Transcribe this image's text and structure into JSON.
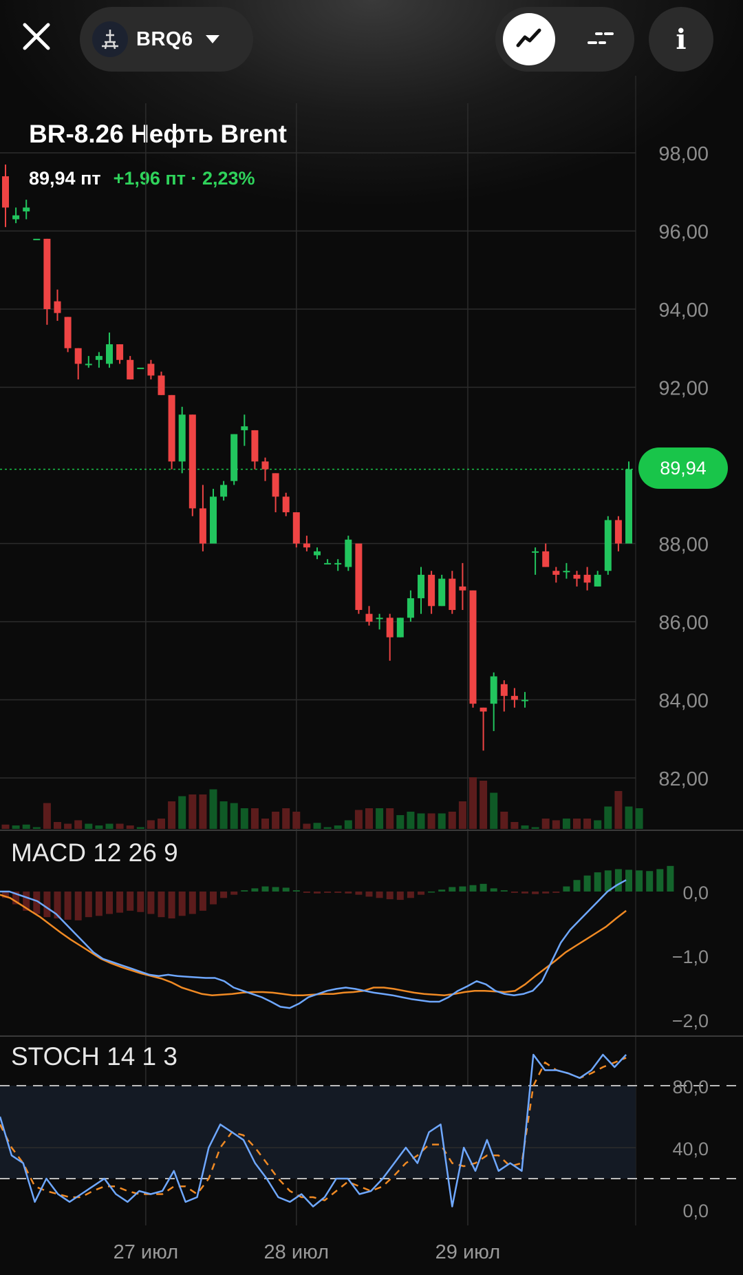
{
  "header": {
    "ticker": "BRQ6",
    "close_icon": "close-icon",
    "ticker_icon": "oil-rig-icon",
    "mode_chart_icon": "line-chart-icon",
    "mode_list_icon": "dashes-icon",
    "info_icon": "info-icon",
    "info_glyph": "i"
  },
  "instrument": {
    "title": "BR-8.26 Нефть Brent",
    "price": "89,94 пт",
    "change": "+1,96 пт · 2,23%"
  },
  "colors": {
    "up": "#22c55e",
    "down": "#ef4444",
    "macd_line": "#6fa8ff",
    "signal_line": "#f08a24",
    "badge": "#19c54a"
  },
  "chart_data": [
    {
      "type": "candlestick",
      "title": "BR-8.26 Нефть Brent",
      "y_ticks": [
        "98,00",
        "96,00",
        "94,00",
        "92,00",
        "88,00",
        "86,00",
        "84,00",
        "82,00"
      ],
      "ylim": [
        80.6,
        98.0
      ],
      "last_price": "89,94",
      "x_ticks": [
        "27 июл",
        "28 июл",
        "29 июл"
      ],
      "x_tick_index": [
        13.5,
        28,
        44.5
      ],
      "candles": [
        [
          97.4,
          97.7,
          96.1,
          96.6
        ],
        [
          96.3,
          96.6,
          96.2,
          96.4
        ],
        [
          96.5,
          96.8,
          96.3,
          96.6
        ],
        [
          95.8,
          95.8,
          95.8,
          95.8
        ],
        [
          95.8,
          95.8,
          93.6,
          94.0
        ],
        [
          94.2,
          94.5,
          93.7,
          93.9
        ],
        [
          93.8,
          93.8,
          92.9,
          93.0
        ],
        [
          93.0,
          93.0,
          92.2,
          92.6
        ],
        [
          92.6,
          92.8,
          92.5,
          92.6
        ],
        [
          92.7,
          92.9,
          92.5,
          92.8
        ],
        [
          92.6,
          93.4,
          92.5,
          93.1
        ],
        [
          93.1,
          93.1,
          92.6,
          92.7
        ],
        [
          92.7,
          92.8,
          92.2,
          92.2
        ],
        [
          92.5,
          92.5,
          92.5,
          92.5
        ],
        [
          92.6,
          92.7,
          92.2,
          92.3
        ],
        [
          92.3,
          92.4,
          91.8,
          91.8
        ],
        [
          91.8,
          91.8,
          89.9,
          90.1
        ],
        [
          90.1,
          91.5,
          89.8,
          91.3
        ],
        [
          91.3,
          91.3,
          88.7,
          88.9
        ],
        [
          88.9,
          89.5,
          87.8,
          88.0
        ],
        [
          88.0,
          89.4,
          88.0,
          89.2
        ],
        [
          89.2,
          89.6,
          89.1,
          89.5
        ],
        [
          89.6,
          90.8,
          89.5,
          90.8
        ],
        [
          90.9,
          91.3,
          90.5,
          91.0
        ],
        [
          90.9,
          90.9,
          89.9,
          90.1
        ],
        [
          90.1,
          90.2,
          89.6,
          89.9
        ],
        [
          89.8,
          89.8,
          88.8,
          89.2
        ],
        [
          89.2,
          89.3,
          88.7,
          88.8
        ],
        [
          88.8,
          88.8,
          87.9,
          88.0
        ],
        [
          88.0,
          88.2,
          87.8,
          87.9
        ],
        [
          87.7,
          87.9,
          87.6,
          87.8
        ],
        [
          87.5,
          87.6,
          87.5,
          87.5
        ],
        [
          87.5,
          87.6,
          87.3,
          87.5
        ],
        [
          87.4,
          88.2,
          87.3,
          88.1
        ],
        [
          88.0,
          88.0,
          86.2,
          86.3
        ],
        [
          86.2,
          86.4,
          85.9,
          86.0
        ],
        [
          86.1,
          86.2,
          85.8,
          86.1
        ],
        [
          86.1,
          86.2,
          85.0,
          85.6
        ],
        [
          85.6,
          86.1,
          85.6,
          86.1
        ],
        [
          86.1,
          86.8,
          86.0,
          86.6
        ],
        [
          86.6,
          87.4,
          86.2,
          87.2
        ],
        [
          87.2,
          87.3,
          86.2,
          86.4
        ],
        [
          86.4,
          87.2,
          86.4,
          87.1
        ],
        [
          87.1,
          87.3,
          86.2,
          86.3
        ],
        [
          86.9,
          87.5,
          86.3,
          86.8
        ],
        [
          86.8,
          86.8,
          83.8,
          83.9
        ],
        [
          83.8,
          83.8,
          82.7,
          83.7
        ],
        [
          83.9,
          84.7,
          83.2,
          84.6
        ],
        [
          84.4,
          84.5,
          83.7,
          84.1
        ],
        [
          84.1,
          84.3,
          83.8,
          84.0
        ],
        [
          84.0,
          84.2,
          83.8,
          84.0
        ],
        [
          87.8,
          87.9,
          87.2,
          87.8
        ],
        [
          87.8,
          88.0,
          87.4,
          87.4
        ],
        [
          87.3,
          87.4,
          87.0,
          87.2
        ],
        [
          87.3,
          87.5,
          87.1,
          87.3
        ],
        [
          87.2,
          87.3,
          86.9,
          87.1
        ],
        [
          87.2,
          87.4,
          86.8,
          87.0
        ],
        [
          86.9,
          87.3,
          86.9,
          87.2
        ],
        [
          87.3,
          88.7,
          87.2,
          88.6
        ],
        [
          88.6,
          88.7,
          87.8,
          88.0
        ],
        [
          88.0,
          90.1,
          88.0,
          89.9
        ]
      ],
      "volume": [
        0.25,
        0.2,
        0.25,
        0.1,
        1.5,
        0.4,
        0.3,
        0.5,
        0.3,
        0.2,
        0.3,
        0.3,
        0.2,
        0.1,
        0.5,
        0.6,
        1.6,
        1.9,
        2.0,
        2.0,
        2.3,
        1.6,
        1.5,
        1.2,
        1.2,
        0.6,
        1.0,
        1.2,
        1.0,
        0.3,
        0.35,
        0.1,
        0.2,
        0.5,
        1.1,
        1.2,
        1.2,
        1.2,
        0.8,
        1.0,
        0.9,
        0.9,
        0.9,
        1.0,
        1.6,
        3.0,
        2.8,
        2.1,
        1.0,
        0.4,
        0.2,
        0.1,
        0.6,
        0.5,
        0.6,
        0.6,
        0.6,
        0.5,
        1.3,
        2.2,
        1.3,
        1.2
      ],
      "volume_scale": [
        0,
        4
      ]
    },
    {
      "type": "macd",
      "label": "MACD 12 26 9",
      "y_ticks": [
        "0,0",
        "−1,0",
        "−2,0"
      ],
      "ylim": [
        -2.0,
        0.7
      ],
      "macd": [
        0.0,
        0.0,
        -0.05,
        -0.1,
        -0.15,
        -0.25,
        -0.35,
        -0.5,
        -0.65,
        -0.8,
        -0.95,
        -1.05,
        -1.1,
        -1.15,
        -1.2,
        -1.25,
        -1.3,
        -1.32,
        -1.3,
        -1.32,
        -1.33,
        -1.34,
        -1.35,
        -1.35,
        -1.4,
        -1.5,
        -1.55,
        -1.6,
        -1.65,
        -1.72,
        -1.8,
        -1.82,
        -1.75,
        -1.65,
        -1.6,
        -1.55,
        -1.52,
        -1.5,
        -1.52,
        -1.55,
        -1.58,
        -1.6,
        -1.62,
        -1.65,
        -1.68,
        -1.7,
        -1.72,
        -1.72,
        -1.65,
        -1.55,
        -1.48,
        -1.4,
        -1.45,
        -1.55,
        -1.6,
        -1.62,
        -1.6,
        -1.55,
        -1.4,
        -1.1,
        -0.8,
        -0.6,
        -0.45,
        -0.3,
        -0.15,
        0.0,
        0.1,
        0.18
      ],
      "signal": [
        -0.05,
        -0.1,
        -0.2,
        -0.3,
        -0.4,
        -0.52,
        -0.64,
        -0.75,
        -0.85,
        -0.95,
        -1.05,
        -1.12,
        -1.18,
        -1.23,
        -1.28,
        -1.32,
        -1.36,
        -1.42,
        -1.5,
        -1.55,
        -1.6,
        -1.62,
        -1.61,
        -1.6,
        -1.58,
        -1.57,
        -1.57,
        -1.58,
        -1.6,
        -1.62,
        -1.62,
        -1.61,
        -1.6,
        -1.6,
        -1.58,
        -1.57,
        -1.55,
        -1.5,
        -1.5,
        -1.52,
        -1.55,
        -1.58,
        -1.6,
        -1.61,
        -1.62,
        -1.6,
        -1.57,
        -1.55,
        -1.55,
        -1.56,
        -1.57,
        -1.55,
        -1.45,
        -1.32,
        -1.2,
        -1.08,
        -0.95,
        -0.85,
        -0.75,
        -0.65,
        -0.55,
        -0.42,
        -0.3
      ],
      "histogram": [
        -0.1,
        -0.2,
        -0.3,
        -0.35,
        -0.4,
        -0.42,
        -0.44,
        -0.45,
        -0.4,
        -0.38,
        -0.35,
        -0.33,
        -0.3,
        -0.32,
        -0.35,
        -0.4,
        -0.42,
        -0.38,
        -0.35,
        -0.3,
        -0.2,
        -0.1,
        -0.05,
        0.02,
        0.05,
        0.08,
        0.07,
        0.06,
        0.02,
        -0.02,
        -0.03,
        -0.02,
        -0.02,
        -0.03,
        -0.05,
        -0.08,
        -0.1,
        -0.12,
        -0.13,
        -0.1,
        -0.05,
        0.0,
        0.03,
        0.07,
        0.08,
        0.1,
        0.12,
        0.05,
        0.02,
        -0.02,
        -0.03,
        -0.04,
        -0.03,
        -0.02,
        0.08,
        0.18,
        0.25,
        0.3,
        0.33,
        0.35,
        0.34,
        0.33,
        0.32,
        0.35,
        0.4
      ]
    },
    {
      "type": "stochastic",
      "label": "STOCH 14 1 3",
      "y_ticks": [
        "80,0",
        "40,0",
        "0,0"
      ],
      "ylim": [
        0,
        110
      ],
      "levels": [
        80,
        20
      ],
      "k": [
        60,
        35,
        30,
        5,
        20,
        10,
        5,
        10,
        15,
        20,
        10,
        5,
        12,
        10,
        12,
        25,
        5,
        8,
        40,
        55,
        50,
        45,
        30,
        20,
        8,
        5,
        10,
        2,
        8,
        20,
        20,
        10,
        12,
        20,
        30,
        40,
        30,
        50,
        55,
        2,
        40,
        25,
        45,
        25,
        30,
        25,
        100,
        90,
        90,
        88,
        85,
        90,
        100,
        92,
        100
      ],
      "d": [
        55,
        40,
        30,
        15,
        12,
        10,
        8,
        8,
        12,
        15,
        15,
        12,
        10,
        10,
        10,
        15,
        15,
        10,
        20,
        40,
        50,
        48,
        40,
        30,
        20,
        12,
        8,
        8,
        6,
        12,
        18,
        15,
        12,
        15,
        22,
        30,
        35,
        42,
        42,
        30,
        28,
        30,
        35,
        35,
        28,
        30,
        80,
        95,
        90,
        88,
        85,
        88,
        92,
        95,
        98
      ]
    }
  ]
}
